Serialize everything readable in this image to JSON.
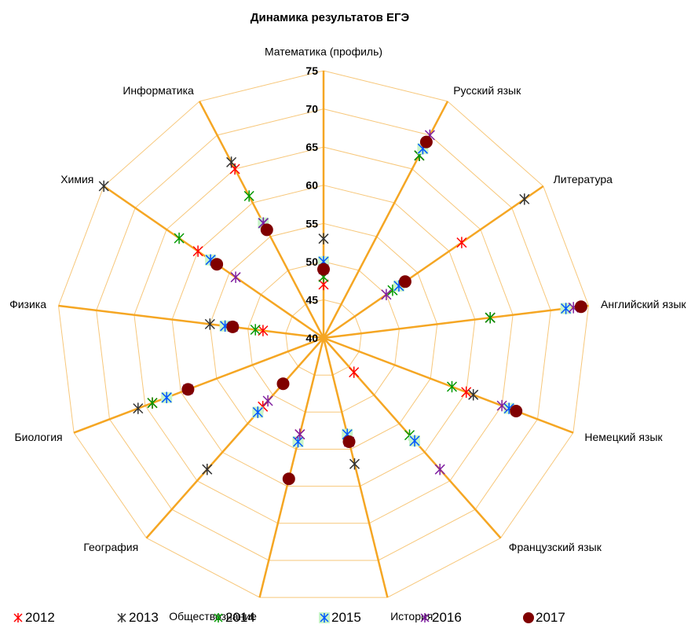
{
  "chart_data": {
    "type": "radar",
    "title": "Динамика результатов ЕГЭ",
    "categories": [
      "Математика (профиль)",
      "Русский язык",
      "Литература",
      "Английский язык",
      "Немецкий язык",
      "Французский язык",
      "История",
      "Обществознание",
      "География",
      "Биология",
      "Физика",
      "Химия",
      "Информатика"
    ],
    "range": [
      40,
      75
    ],
    "ticks": [
      "40",
      "45",
      "50",
      "55",
      "60",
      "65",
      "70",
      "75"
    ],
    "series": [
      {
        "name": "2012",
        "color": "#ff0000",
        "marker": "asterisk",
        "values": [
          47,
          67,
          62,
          62,
          60,
          46,
          54,
          53,
          52,
          64,
          48,
          60,
          65
        ]
      },
      {
        "name": "2013",
        "color": "#333333",
        "marker": "asterisk",
        "values": [
          53,
          67,
          72,
          62,
          61,
          58,
          57,
          54,
          63,
          66,
          55,
          75,
          66
        ]
      },
      {
        "name": "2014",
        "color": "#009900",
        "marker": "asterisk",
        "values": [
          48,
          67,
          51,
          62,
          58,
          57,
          53,
          54,
          53,
          64,
          49,
          63,
          61
        ]
      },
      {
        "name": "2015",
        "color": "#0055ff",
        "marker": "asterisk",
        "values": [
          50,
          68,
          52,
          72,
          66,
          58,
          53,
          54,
          53,
          62,
          53,
          58,
          57
        ]
      },
      {
        "name": "2016",
        "color": "#7f1fa0",
        "marker": "asterisk",
        "values": [
          49,
          70,
          50,
          73,
          65,
          63,
          54,
          53,
          51,
          59,
          52,
          54,
          57
        ]
      },
      {
        "name": "2017",
        "color": "#800000",
        "marker": "circle",
        "values": [
          49,
          69,
          53,
          74,
          67,
          "",
          54,
          59,
          48,
          59,
          52,
          57,
          56
        ]
      }
    ],
    "legend": "bottom",
    "grid": true
  }
}
